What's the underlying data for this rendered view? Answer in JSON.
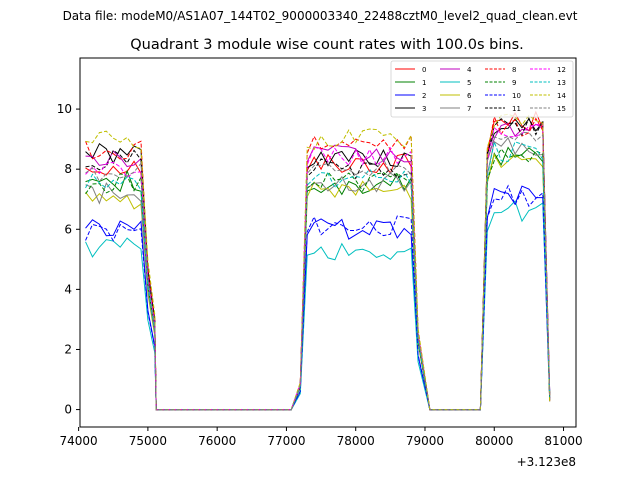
{
  "chart_data": {
    "type": "line",
    "suptitle": "Data file: modeM0/AS1A07_144T02_9000003340_22488cztM0_level2_quad_clean.evt",
    "title": "Quadrant 3 module wise count rates with 100.0s bins.",
    "xlabel": "",
    "ylabel": "",
    "x_offset_label": "+3.123e8",
    "xlim": [
      74020,
      81180
    ],
    "ylim": [
      -0.58,
      11.7
    ],
    "xticks": [
      74000,
      75000,
      76000,
      77000,
      78000,
      79000,
      80000,
      81000
    ],
    "xtick_labels": [
      "74000",
      "75000",
      "76000",
      "77000",
      "78000",
      "79000",
      "80000",
      "81000"
    ],
    "yticks": [
      0,
      2,
      4,
      6,
      8,
      10
    ],
    "ytick_labels": [
      "0",
      "2",
      "4",
      "6",
      "8",
      "10"
    ],
    "grid": false,
    "legend_position": "top-right",
    "gaps": [
      [
        75120,
        77070
      ],
      [
        79070,
        79800
      ]
    ],
    "segments": [
      {
        "start": 74100,
        "step": 100,
        "count": 11
      },
      {
        "start": 77200,
        "step": 100,
        "count": 18
      },
      {
        "start": 79900,
        "step": 100,
        "count": 10
      }
    ],
    "series": [
      {
        "name": "0",
        "color": "#ff0000",
        "dash": "solid",
        "plateaus": [
          8.1,
          8.2,
          9.6
        ]
      },
      {
        "name": "1",
        "color": "#008000",
        "dash": "solid",
        "plateaus": [
          7.6,
          7.5,
          8.4
        ]
      },
      {
        "name": "2",
        "color": "#0000ff",
        "dash": "solid",
        "plateaus": [
          6.0,
          6.0,
          7.1
        ]
      },
      {
        "name": "3",
        "color": "#000000",
        "dash": "solid",
        "plateaus": [
          8.5,
          8.3,
          9.5
        ]
      },
      {
        "name": "4",
        "color": "#bf00bf",
        "dash": "solid",
        "plateaus": [
          8.3,
          8.5,
          9.2
        ]
      },
      {
        "name": "5",
        "color": "#00bfbf",
        "dash": "solid",
        "plateaus": [
          5.4,
          5.3,
          6.6
        ]
      },
      {
        "name": "6",
        "color": "#bfbf00",
        "dash": "solid",
        "plateaus": [
          7.0,
          7.3,
          8.4
        ]
      },
      {
        "name": "7",
        "color": "#808080",
        "dash": "solid",
        "plateaus": [
          7.2,
          7.6,
          8.7
        ]
      },
      {
        "name": "8",
        "color": "#ff0000",
        "dash": "dashed",
        "plateaus": [
          8.6,
          8.8,
          9.4
        ]
      },
      {
        "name": "9",
        "color": "#008000",
        "dash": "dashed",
        "plateaus": [
          7.5,
          7.6,
          8.5
        ]
      },
      {
        "name": "10",
        "color": "#0000ff",
        "dash": "dashed",
        "plateaus": [
          5.9,
          6.1,
          7.1
        ]
      },
      {
        "name": "11",
        "color": "#000000",
        "dash": "dashed",
        "plateaus": [
          8.3,
          8.0,
          9.4
        ]
      },
      {
        "name": "12",
        "color": "#ff00ff",
        "dash": "dashed",
        "plateaus": [
          8.0,
          8.4,
          9.2
        ]
      },
      {
        "name": "13",
        "color": "#00bfbf",
        "dash": "dashed",
        "plateaus": [
          7.5,
          7.7,
          8.6
        ]
      },
      {
        "name": "14",
        "color": "#bfbf00",
        "dash": "dashed",
        "plateaus": [
          9.0,
          9.0,
          9.7
        ]
      },
      {
        "name": "15",
        "color": "#808080",
        "dash": "dashed",
        "plateaus": [
          7.9,
          8.1,
          9.2
        ]
      }
    ]
  }
}
